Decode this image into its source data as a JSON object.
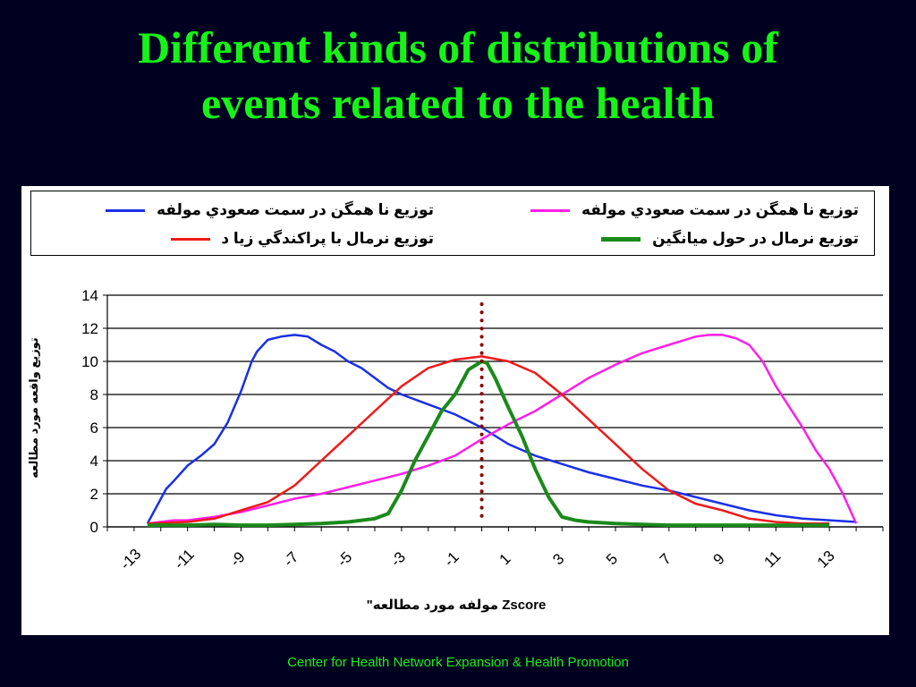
{
  "title_line1": "Different kinds of distributions of",
  "title_line2": "events related to the health",
  "footer": "Center for Health Network Expansion & Health Promotion",
  "chart_data": {
    "type": "line",
    "ylabel": "توزيع واقعه مورد مطالعه",
    "xlabel": "Zscore مولفه مورد مطالعه\"",
    "ylim": [
      0,
      14
    ],
    "xlim": [
      -14,
      15
    ],
    "yticks": [
      0,
      2,
      4,
      6,
      8,
      10,
      12,
      14
    ],
    "xticks": [
      {
        "value": -13,
        "label": "-13"
      },
      {
        "value": -11,
        "label": "-11"
      },
      {
        "value": -9,
        "label": "-9"
      },
      {
        "value": -7,
        "label": "-7"
      },
      {
        "value": -5,
        "label": "-5"
      },
      {
        "value": -3,
        "label": "-3"
      },
      {
        "value": -1,
        "label": "-1"
      },
      {
        "value": 1,
        "label": "1"
      },
      {
        "value": 3,
        "label": "3"
      },
      {
        "value": 5,
        "label": "5"
      },
      {
        "value": 7,
        "label": "7"
      },
      {
        "value": 9,
        "label": "9"
      },
      {
        "value": 11,
        "label": "11"
      },
      {
        "value": 13,
        "label": "13"
      }
    ],
    "grid": "horizontal",
    "legend_position": "top",
    "series": [
      {
        "name": "توزيع نا همگن در سمت صعودي مولفه",
        "color": "#1a2fe6",
        "x": [
          -12.5,
          -11.8,
          -11.5,
          -11,
          -10.5,
          -10,
          -9.5,
          -9,
          -8.6,
          -8.4,
          -8,
          -7.5,
          -7,
          -6.5,
          -6,
          -5.5,
          -5,
          -4.5,
          -4,
          -3.5,
          -3,
          -2,
          -1,
          0,
          1,
          2,
          3,
          4,
          5,
          6,
          7,
          8,
          9,
          10,
          11,
          12,
          13,
          14
        ],
        "y": [
          0.2,
          2.3,
          2.8,
          3.7,
          4.3,
          5.0,
          6.3,
          8.2,
          10.0,
          10.6,
          11.3,
          11.5,
          11.6,
          11.5,
          11.0,
          10.6,
          10.0,
          9.6,
          9.0,
          8.4,
          8.0,
          7.4,
          6.8,
          6.0,
          5.0,
          4.3,
          3.8,
          3.3,
          2.9,
          2.5,
          2.2,
          1.8,
          1.4,
          1.0,
          0.7,
          0.5,
          0.4,
          0.3
        ]
      },
      {
        "name": "توزيع نا همگن در سمت صعودي مولفه",
        "color": "#ff1ee8",
        "x": [
          -12.5,
          -11.5,
          -11,
          -10,
          -9,
          -8,
          -7,
          -6,
          -5,
          -4,
          -3,
          -2,
          -1,
          0,
          1,
          2,
          3,
          4,
          5,
          6,
          7,
          8,
          8.5,
          9,
          9.5,
          10,
          10.5,
          11,
          12,
          12.5,
          13,
          13.5,
          14
        ],
        "y": [
          0.2,
          0.4,
          0.4,
          0.6,
          0.9,
          1.3,
          1.7,
          2.0,
          2.4,
          2.8,
          3.2,
          3.7,
          4.3,
          5.3,
          6.2,
          7.0,
          8.0,
          9.0,
          9.8,
          10.5,
          11.0,
          11.5,
          11.6,
          11.6,
          11.4,
          11.0,
          10.0,
          8.5,
          6.0,
          4.6,
          3.5,
          2.0,
          0.2
        ]
      },
      {
        "name": "توزيع نرمال با پراكندگي زيا د",
        "color": "#ee1a1a",
        "x": [
          -12.5,
          -11,
          -10,
          -9,
          -8,
          -7,
          -6,
          -5,
          -4,
          -3,
          -2,
          -1,
          0,
          1,
          2,
          3,
          4,
          5,
          6,
          7,
          8,
          9,
          10,
          11,
          12,
          13
        ],
        "y": [
          0.2,
          0.3,
          0.5,
          1.0,
          1.5,
          2.5,
          4.0,
          5.5,
          7.0,
          8.5,
          9.6,
          10.1,
          10.3,
          10.0,
          9.3,
          8.0,
          6.5,
          5.0,
          3.5,
          2.2,
          1.4,
          1.0,
          0.5,
          0.3,
          0.2,
          0.2
        ]
      },
      {
        "name": "توزيع نرمال در حول ميانگين",
        "color": "#1a8a1a",
        "x": [
          -12.5,
          -11,
          -10,
          -9,
          -8,
          -7,
          -6,
          -5,
          -4,
          -3.5,
          -3,
          -2.5,
          -2,
          -1.5,
          -1,
          -0.5,
          0,
          0.2,
          0.5,
          1,
          1.5,
          2,
          2.5,
          3,
          3.5,
          4,
          5,
          6,
          7,
          8,
          9,
          10,
          11,
          12,
          13
        ],
        "y": [
          0.1,
          0.1,
          0.15,
          0.1,
          0.1,
          0.15,
          0.2,
          0.3,
          0.5,
          0.8,
          2.2,
          4.0,
          5.5,
          7.0,
          8.0,
          9.5,
          10.0,
          9.9,
          9.0,
          7.2,
          5.5,
          3.5,
          1.8,
          0.6,
          0.4,
          0.3,
          0.2,
          0.15,
          0.1,
          0.1,
          0.1,
          0.1,
          0.1,
          0.1,
          0.1
        ]
      }
    ],
    "reference_line": {
      "x": 0,
      "color": "#8b0000"
    }
  }
}
